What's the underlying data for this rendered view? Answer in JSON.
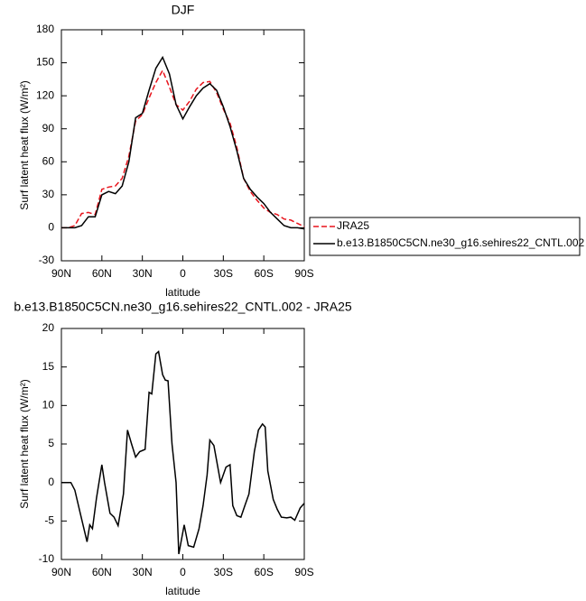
{
  "chart_data": [
    {
      "type": "line",
      "title": "DJF",
      "x_label": "latitude",
      "y_label": "Surf latent heat flux (W/m²)",
      "x": [
        90,
        85,
        80,
        75,
        70,
        65,
        60,
        55,
        50,
        45,
        40,
        35,
        30,
        25,
        20,
        15,
        10,
        5,
        0,
        -5,
        -10,
        -15,
        -20,
        -25,
        -30,
        -35,
        -40,
        -45,
        -50,
        -55,
        -60,
        -65,
        -70,
        -75,
        -80,
        -85,
        -90
      ],
      "series": [
        {
          "name": "JRA25",
          "color": "#e8141c",
          "dash": true,
          "values": [
            0,
            0,
            2,
            13,
            14,
            12,
            35,
            37,
            38,
            45,
            65,
            97,
            103,
            118,
            132,
            143,
            128,
            112,
            107,
            115,
            126,
            132,
            133,
            123,
            108,
            95,
            73,
            45,
            33,
            25,
            18,
            14,
            12,
            8,
            7,
            4,
            1
          ]
        },
        {
          "name": "b.e13.B1850C5CN.ne30_g16.sehires22_CNTL.002",
          "color": "#000000",
          "dash": false,
          "values": [
            0,
            0,
            0,
            2,
            10,
            10,
            30,
            33,
            31,
            38,
            60,
            100,
            104,
            125,
            145,
            155,
            140,
            112,
            99,
            110,
            120,
            127,
            131,
            125,
            110,
            92,
            70,
            45,
            35,
            28,
            22,
            14,
            8,
            2,
            0,
            0,
            -1
          ]
        }
      ],
      "xlim": [
        90,
        -90
      ],
      "xticks": [
        {
          "value": 90,
          "label": "90N"
        },
        {
          "value": 60,
          "label": "60N"
        },
        {
          "value": 30,
          "label": "30N"
        },
        0,
        {
          "value": -30,
          "label": "30S"
        },
        {
          "value": -60,
          "label": "60S"
        },
        {
          "value": -90,
          "label": "90S"
        }
      ],
      "ylim": [
        -30,
        180
      ],
      "yticks": [
        -30,
        0,
        30,
        60,
        90,
        120,
        150,
        180
      ],
      "legend": "right"
    },
    {
      "type": "line",
      "title": "b.e13.B1850C5CN.ne30_g16.sehires22_CNTL.002 - JRA25",
      "x_label": "latitude",
      "y_label": "Surf latent heat flux (W/m²)",
      "x": [
        90,
        83,
        80,
        76,
        71,
        69,
        67,
        64,
        60,
        58,
        54,
        51,
        48,
        44,
        41,
        38,
        35,
        32,
        28,
        25,
        23,
        20,
        18,
        15,
        13,
        11,
        8,
        5,
        3,
        -1,
        -4,
        -8,
        -12,
        -15,
        -18,
        -20,
        -23,
        -28,
        -32,
        -35,
        -37,
        -40,
        -43,
        -46,
        -49,
        -53,
        -56,
        -59,
        -61,
        -63,
        -67,
        -70,
        -73,
        -77,
        -80,
        -83,
        -87,
        -90
      ],
      "series": [
        {
          "color": "#000000",
          "dash": false,
          "values": [
            0,
            0,
            -1,
            -4,
            -7.7,
            -5.5,
            -6,
            -2,
            2.3,
            0,
            -4,
            -4.5,
            -5.6,
            -1.5,
            6.8,
            5,
            3.3,
            4,
            4.3,
            11.7,
            11.5,
            16.7,
            17,
            14,
            13.3,
            13.2,
            5,
            0,
            -9.3,
            -5.5,
            -8.2,
            -8.4,
            -6,
            -3,
            1,
            5.5,
            4.8,
            0,
            2,
            2.3,
            -3,
            -4.3,
            -4.5,
            -3,
            -1.5,
            4,
            6.8,
            7.6,
            7.2,
            1.5,
            -2.2,
            -3.5,
            -4.5,
            -4.6,
            -4.5,
            -4.9,
            -3.3,
            -2.7
          ]
        }
      ],
      "xlim": [
        90,
        -90
      ],
      "xticks": [
        {
          "value": 90,
          "label": "90N"
        },
        {
          "value": 60,
          "label": "60N"
        },
        {
          "value": 30,
          "label": "30N"
        },
        0,
        {
          "value": -30,
          "label": "30S"
        },
        {
          "value": -60,
          "label": "60S"
        },
        {
          "value": -90,
          "label": "90S"
        }
      ],
      "ylim": [
        -10,
        20
      ],
      "yticks": [
        -10,
        -5,
        0,
        5,
        10,
        15,
        20
      ]
    }
  ]
}
